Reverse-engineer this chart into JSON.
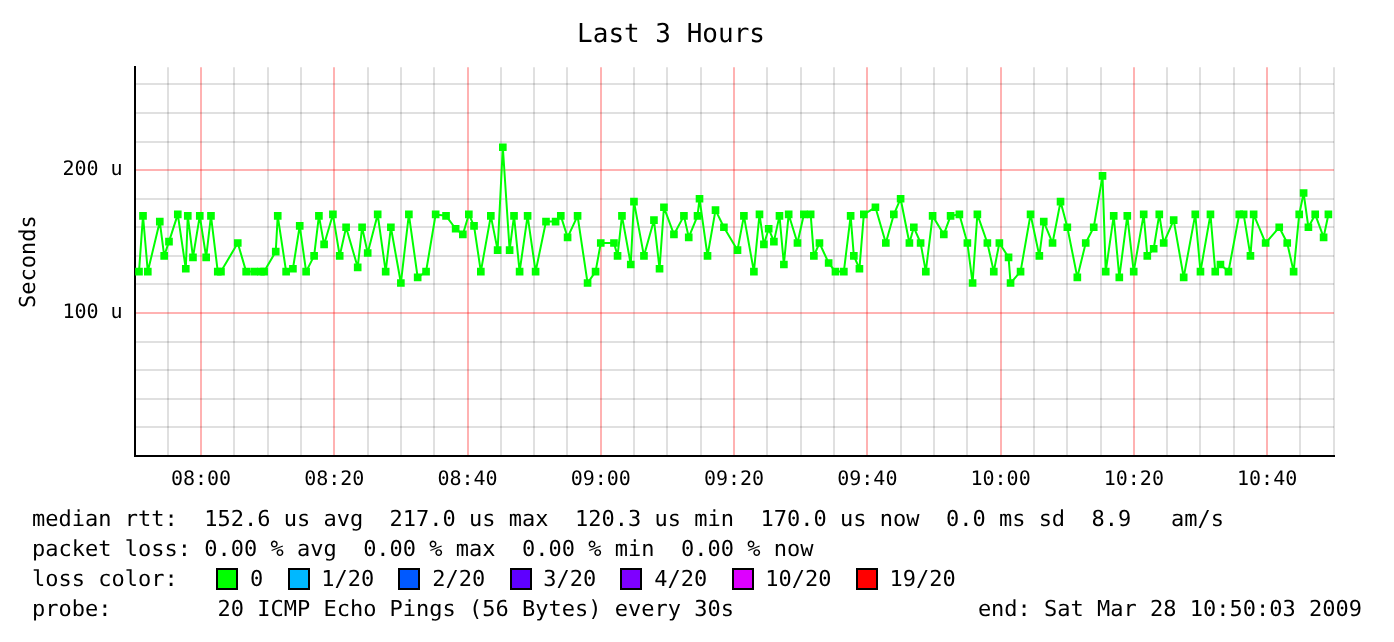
{
  "chart_data": {
    "type": "line",
    "title": "Last 3 Hours",
    "ylabel": "Seconds",
    "legend_title": "loss color:",
    "legend": "bottom",
    "grid": true,
    "marker": "square",
    "xlim": [
      7.834,
      10.834
    ],
    "xticks": [
      {
        "value": 7.9167,
        "label": null
      },
      {
        "value": 8,
        "label": "08:00"
      },
      {
        "value": 8.0833,
        "label": null
      },
      {
        "value": 8.1667,
        "label": null
      },
      {
        "value": 8.25,
        "label": null
      },
      {
        "value": 8.3333,
        "label": "08:20"
      },
      {
        "value": 8.4167,
        "label": null
      },
      {
        "value": 8.5,
        "label": null
      },
      {
        "value": 8.5833,
        "label": null
      },
      {
        "value": 8.6667,
        "label": "08:40"
      },
      {
        "value": 8.75,
        "label": null
      },
      {
        "value": 8.8333,
        "label": null
      },
      {
        "value": 8.9167,
        "label": null
      },
      {
        "value": 9,
        "label": "09:00"
      },
      {
        "value": 9.0833,
        "label": null
      },
      {
        "value": 9.1667,
        "label": null
      },
      {
        "value": 9.25,
        "label": null
      },
      {
        "value": 9.3333,
        "label": "09:20"
      },
      {
        "value": 9.4167,
        "label": null
      },
      {
        "value": 9.5,
        "label": null
      },
      {
        "value": 9.5833,
        "label": null
      },
      {
        "value": 9.6667,
        "label": "09:40"
      },
      {
        "value": 9.75,
        "label": null
      },
      {
        "value": 9.8333,
        "label": null
      },
      {
        "value": 9.9167,
        "label": null
      },
      {
        "value": 10,
        "label": "10:00"
      },
      {
        "value": 10.0833,
        "label": null
      },
      {
        "value": 10.1667,
        "label": null
      },
      {
        "value": 10.25,
        "label": null
      },
      {
        "value": 10.3333,
        "label": "10:20"
      },
      {
        "value": 10.4167,
        "label": null
      },
      {
        "value": 10.5,
        "label": null
      },
      {
        "value": 10.5833,
        "label": null
      },
      {
        "value": 10.6667,
        "label": "10:40"
      },
      {
        "value": 10.75,
        "label": null
      },
      {
        "value": 10.8333,
        "label": null
      }
    ],
    "ylim": [
      0,
      272
    ],
    "yticks": [
      {
        "value": 20,
        "label": null
      },
      {
        "value": 40,
        "label": null
      },
      {
        "value": 60,
        "label": null
      },
      {
        "value": 80,
        "label": null
      },
      {
        "value": 100,
        "label": "100 u"
      },
      {
        "value": 120,
        "label": null
      },
      {
        "value": 140,
        "label": null
      },
      {
        "value": 160,
        "label": null
      },
      {
        "value": 180,
        "label": null
      },
      {
        "value": 200,
        "label": "200 u"
      },
      {
        "value": 220,
        "label": null
      },
      {
        "value": 240,
        "label": null
      },
      {
        "value": 260,
        "label": null
      }
    ],
    "series": [
      {
        "name": "0",
        "color": "#00ff00",
        "x": [
          7.845,
          7.855,
          7.867,
          7.897,
          7.908,
          7.92,
          7.942,
          7.962,
          7.967,
          7.98,
          7.997,
          8.013,
          8.025,
          8.042,
          8.05,
          8.092,
          8.113,
          8.133,
          8.15,
          8.158,
          8.187,
          8.192,
          8.213,
          8.23,
          8.247,
          8.263,
          8.283,
          8.295,
          8.308,
          8.33,
          8.347,
          8.363,
          8.392,
          8.403,
          8.417,
          8.442,
          8.462,
          8.475,
          8.5,
          8.52,
          8.542,
          8.563,
          8.587,
          8.613,
          8.637,
          8.655,
          8.67,
          8.683,
          8.7,
          8.725,
          8.742,
          8.755,
          8.772,
          8.783,
          8.797,
          8.817,
          8.837,
          8.863,
          8.887,
          8.9,
          8.917,
          8.942,
          8.967,
          8.987,
          9.0,
          9.033,
          9.042,
          9.053,
          9.075,
          9.083,
          9.108,
          9.133,
          9.147,
          9.158,
          9.183,
          9.208,
          9.22,
          9.242,
          9.247,
          9.267,
          9.287,
          9.308,
          9.342,
          9.358,
          9.383,
          9.397,
          9.408,
          9.42,
          9.433,
          9.447,
          9.458,
          9.47,
          9.492,
          9.508,
          9.525,
          9.533,
          9.547,
          9.57,
          9.587,
          9.608,
          9.625,
          9.633,
          9.647,
          9.658,
          9.687,
          9.713,
          9.733,
          9.75,
          9.772,
          9.783,
          9.8,
          9.813,
          9.83,
          9.858,
          9.875,
          9.897,
          9.917,
          9.93,
          9.942,
          9.967,
          9.983,
          9.997,
          10.02,
          10.025,
          10.05,
          10.075,
          10.097,
          10.108,
          10.13,
          10.15,
          10.167,
          10.192,
          10.213,
          10.233,
          10.255,
          10.263,
          10.283,
          10.297,
          10.317,
          10.333,
          10.358,
          10.367,
          10.383,
          10.397,
          10.408,
          10.433,
          10.458,
          10.487,
          10.5,
          10.525,
          10.537,
          10.55,
          10.57,
          10.597,
          10.608,
          10.625,
          10.633,
          10.663,
          10.697,
          10.717,
          10.733,
          10.747,
          10.758,
          10.77,
          10.787,
          10.808,
          10.82
        ],
        "values": [
          129,
          168,
          129,
          164,
          140,
          150,
          169,
          131,
          168,
          139,
          168,
          139,
          168,
          129,
          129,
          149,
          129,
          129,
          129,
          129,
          143,
          168,
          129,
          131,
          161,
          129,
          140,
          168,
          148,
          169,
          140,
          160,
          132,
          160,
          142,
          169,
          129,
          160,
          121,
          169,
          125,
          129,
          169,
          168,
          159,
          155,
          169,
          161,
          129,
          168,
          144,
          216,
          144,
          168,
          129,
          168,
          129,
          164,
          164,
          168,
          153,
          168,
          121,
          129,
          149,
          149,
          140,
          168,
          134,
          178,
          140,
          165,
          131,
          174,
          155,
          168,
          153,
          168,
          180,
          140,
          172,
          160,
          144,
          168,
          129,
          169,
          148,
          159,
          150,
          168,
          134,
          169,
          149,
          169,
          169,
          140,
          149,
          135,
          129,
          129,
          168,
          140,
          131,
          169,
          174,
          149,
          169,
          180,
          149,
          160,
          149,
          129,
          168,
          155,
          168,
          169,
          149,
          121,
          169,
          149,
          129,
          149,
          139,
          121,
          129,
          169,
          140,
          164,
          149,
          178,
          160,
          125,
          149,
          160,
          196,
          129,
          168,
          125,
          168,
          129,
          169,
          140,
          145,
          169,
          149,
          165,
          125,
          169,
          129,
          169,
          129,
          134,
          129,
          169,
          169,
          140,
          169,
          149,
          160,
          149,
          129,
          169,
          184,
          160,
          169,
          153,
          169
        ]
      },
      {
        "name": "1/20",
        "color": "#00b8ff"
      },
      {
        "name": "2/20",
        "color": "#0059ff"
      },
      {
        "name": "3/20",
        "color": "#5e00ff"
      },
      {
        "name": "4/20",
        "color": "#7e00ff"
      },
      {
        "name": "10/20",
        "color": "#dd00ff"
      },
      {
        "name": "19/20",
        "color": "#ff0000"
      }
    ],
    "annotations": [
      "median rtt:  152.6 us avg  217.0 us max  120.3 us min  170.0 us now  0.0 ms sd  8.9   am/s",
      "packet loss: 0.00 % avg  0.00 % max  0.00 % min  0.00 % now",
      "probe:        20 ICMP Echo Pings (56 Bytes) every 30s",
      "end: Sat Mar 28 10:50:03 2009"
    ]
  }
}
